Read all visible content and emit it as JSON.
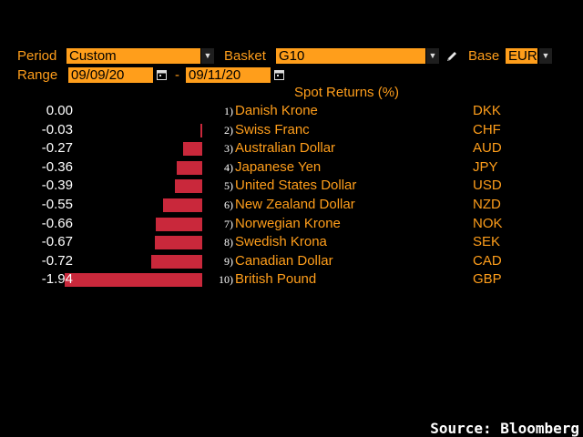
{
  "controls": {
    "period_label": "Period",
    "period_value": "Custom",
    "basket_label": "Basket",
    "basket_value": "G10",
    "base_label": "Base",
    "base_value": "EUR",
    "range_label": "Range",
    "range_start": "09/09/20",
    "range_sep": "-",
    "range_end": "09/11/20"
  },
  "chart_data": {
    "type": "bar",
    "title": "Spot Returns (%)",
    "categories": [
      "Danish Krone",
      "Swiss Franc",
      "Australian Dollar",
      "Japanese Yen",
      "United States Dollar",
      "New Zealand Dollar",
      "Norwegian Krone",
      "Swedish Krona",
      "Canadian Dollar",
      "British Pound"
    ],
    "codes": [
      "DKK",
      "CHF",
      "AUD",
      "JPY",
      "USD",
      "NZD",
      "NOK",
      "SEK",
      "CAD",
      "GBP"
    ],
    "ranks": [
      "1)",
      "2)",
      "3)",
      "4)",
      "5)",
      "6)",
      "7)",
      "8)",
      "9)",
      "10)"
    ],
    "value_labels": [
      "0.00",
      "-0.03",
      "-0.27",
      "-0.36",
      "-0.39",
      "-0.55",
      "-0.66",
      "-0.67",
      "-0.72",
      "-1.94"
    ],
    "values": [
      0.0,
      -0.03,
      -0.27,
      -0.36,
      -0.39,
      -0.55,
      -0.66,
      -0.67,
      -0.72,
      -1.94
    ],
    "colors": {
      "negative": "#c9283b"
    }
  },
  "footer": {
    "source": "Source: Bloomberg"
  }
}
